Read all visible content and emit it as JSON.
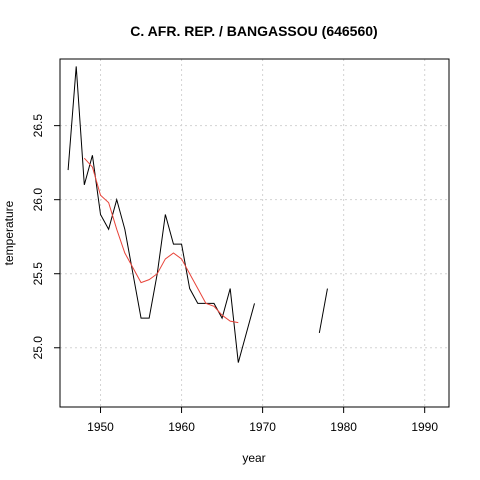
{
  "chart_data": {
    "type": "line",
    "title": "C. AFR. REP. / BANGASSOU (646560)",
    "xlabel": "year",
    "ylabel": "temperature",
    "xlim": [
      1945,
      1993
    ],
    "ylim": [
      24.6,
      26.95
    ],
    "x_ticks": [
      1950,
      1960,
      1970,
      1980,
      1990
    ],
    "y_ticks": [
      25.0,
      25.5,
      26.0,
      26.5
    ],
    "x_tick_labels": [
      "1950",
      "1960",
      "1970",
      "1980",
      "1990"
    ],
    "y_tick_labels": [
      "25.0",
      "25.5",
      "26.0",
      "26.5"
    ],
    "grid": true,
    "series": [
      {
        "color": "#000000",
        "x": [
          1946,
          1947,
          1948,
          1949,
          1950,
          1951,
          1952,
          1953,
          1954,
          1955,
          1956,
          1957,
          1958,
          1959,
          1960,
          1961,
          1962,
          1963,
          1964,
          1965,
          1966,
          1967,
          1968,
          1969,
          1970,
          1971,
          1972,
          1973,
          1974,
          1975,
          1976,
          1977,
          1978
        ],
        "y": [
          26.2,
          26.9,
          26.1,
          26.3,
          25.9,
          25.8,
          26.0,
          25.8,
          25.5,
          25.2,
          25.2,
          25.5,
          25.9,
          25.7,
          25.7,
          25.4,
          25.3,
          25.3,
          25.3,
          25.2,
          25.4,
          24.9,
          25.1,
          25.3,
          null,
          null,
          null,
          null,
          null,
          null,
          null,
          25.1,
          25.4
        ]
      },
      {
        "color": "#e8443a",
        "x": [
          1948,
          1949,
          1950,
          1951,
          1952,
          1953,
          1954,
          1955,
          1956,
          1957,
          1958,
          1959,
          1960,
          1961,
          1962,
          1963,
          1964,
          1965,
          1966,
          1967
        ],
        "y": [
          26.28,
          26.22,
          26.03,
          25.98,
          25.8,
          25.64,
          25.54,
          25.44,
          25.46,
          25.5,
          25.6,
          25.64,
          25.6,
          25.5,
          25.4,
          25.3,
          25.28,
          25.22,
          25.18,
          25.17
        ]
      }
    ]
  }
}
